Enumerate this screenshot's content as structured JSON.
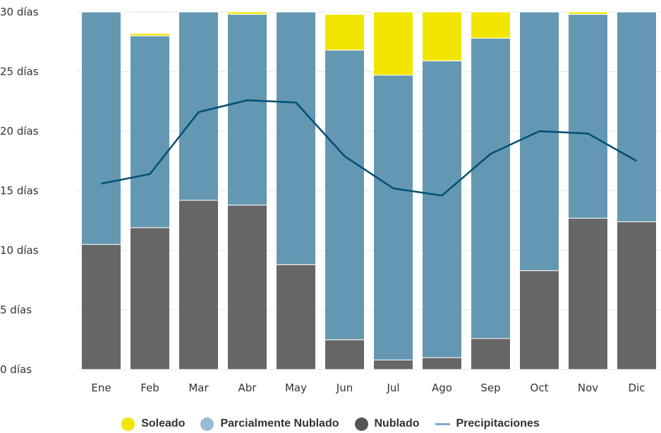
{
  "chart_data": {
    "type": "bar",
    "stacked": true,
    "categories": [
      "Ene",
      "Feb",
      "Mar",
      "Abr",
      "May",
      "Jun",
      "Jul",
      "Ago",
      "Sep",
      "Oct",
      "Nov",
      "Dic"
    ],
    "y_ticks": [
      "0 días",
      "5 días",
      "10 días",
      "15 días",
      "20 días",
      "25 días",
      "30 días"
    ],
    "ylim": [
      0,
      30
    ],
    "grid": true,
    "legend_position": "bottom",
    "series": [
      {
        "name": "Nublado",
        "color": "#666666",
        "values": [
          10.5,
          11.9,
          14.2,
          13.8,
          8.8,
          2.5,
          0.8,
          1.0,
          2.6,
          8.3,
          12.7,
          12.4
        ]
      },
      {
        "name": "Parcialmente Nublado",
        "color": "#6497b1",
        "values": [
          19.5,
          16.1,
          15.8,
          16.0,
          21.2,
          24.3,
          23.9,
          24.9,
          25.2,
          21.7,
          17.1,
          17.6
        ]
      },
      {
        "name": "Soleado",
        "color": "#f2e600",
        "values": [
          0.0,
          0.2,
          0.0,
          0.2,
          0.0,
          3.0,
          5.3,
          4.1,
          2.2,
          0.0,
          0.2,
          0.0
        ]
      }
    ],
    "line_series": {
      "name": "Precipitaciones",
      "color": "#005073",
      "values": [
        15.6,
        16.4,
        21.6,
        22.6,
        22.4,
        17.9,
        15.2,
        14.6,
        18.1,
        20.0,
        19.8,
        17.5
      ]
    }
  },
  "legend": [
    {
      "label": "Soleado",
      "color": "#f2e600",
      "shape": "circle"
    },
    {
      "label": "Parcialmente Nublado",
      "color": "#98bcd0",
      "shape": "circle"
    },
    {
      "label": "Nublado",
      "color": "#555555",
      "shape": "circle"
    },
    {
      "label": "Precipitaciones",
      "color": "#7fa8d8",
      "shape": "line"
    }
  ]
}
